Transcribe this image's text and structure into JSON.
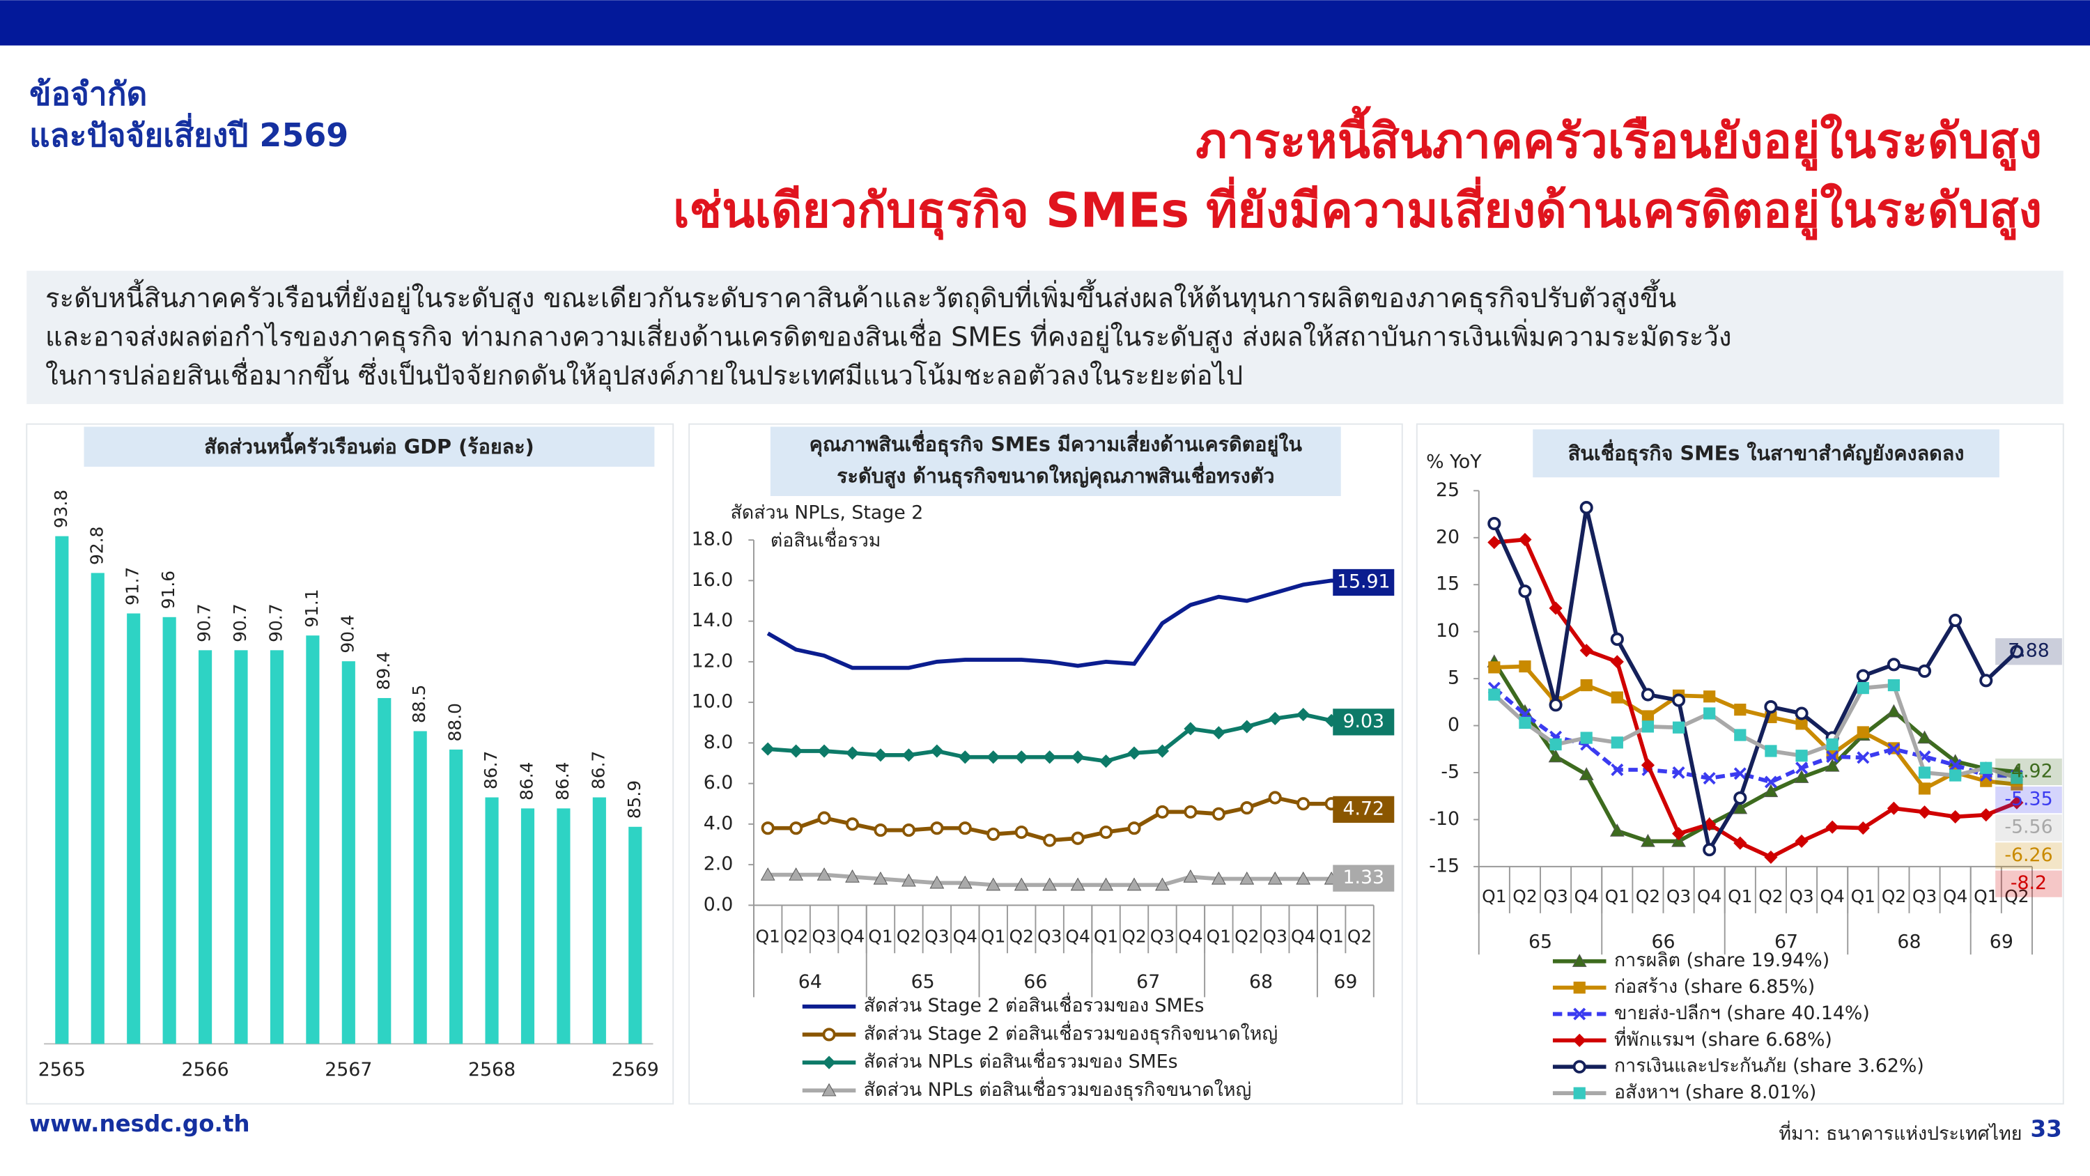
{
  "slide": {
    "heading": [
      "ข้อจำกัด",
      "และปัจจัยเสี่ยงปี 2569"
    ],
    "title": [
      "ภาระหนี้สินภาคครัวเรือนยังอยู่ในระดับสูง",
      "เช่นเดียวกับธุรกิจ SMEs ที่ยังมีความเสี่ยงด้านเครดิตอยู่ในระดับสูง"
    ],
    "summary": [
      "ระดับหนี้สินภาคครัวเรือนที่ยังอยู่ในระดับสูง ขณะเดียวกันระดับราคาสินค้าและวัตถุดิบที่เพิ่มขึ้นส่งผลให้ต้นทุนการผลิตของภาคธุรกิจปรับตัวสูงขึ้น",
      "และอาจส่งผลต่อกำไรของภาคธุรกิจ ท่ามกลางความเสี่ยงด้านเครดิตของสินเชื่อ SMEs ที่คงอยู่ในระดับสูง ส่งผลให้สถาบันการเงินเพิ่มความระมัดระวัง",
      "ในการปล่อยสินเชื่อมากขึ้น ซึ่งเป็นปัจจัยกดดันให้อุปสงค์ภายในประเทศมีแนวโน้มชะลอตัวลงในระยะต่อไป"
    ],
    "website": "www.nesdc.go.th",
    "source": "ที่มา: ธนาคารแห่งประเทศไทย",
    "page": 33
  },
  "chart_data": [
    {
      "type": "bar",
      "title": [
        "สัดส่วนหนี้ครัวเรือนต่อ GDP (ร้อยละ)"
      ],
      "categories": [
        "2565",
        null,
        null,
        null,
        "2566",
        null,
        null,
        null,
        "2567",
        null,
        null,
        null,
        "2568",
        null,
        null,
        null,
        "2569"
      ],
      "values": [
        93.8,
        92.8,
        91.7,
        91.6,
        90.7,
        90.7,
        90.7,
        91.1,
        90.4,
        89.4,
        88.5,
        88.0,
        86.7,
        86.4,
        86.4,
        86.7,
        85.9
      ],
      "value_labels": [
        "93.8",
        "92.8",
        "91.7",
        "91.6",
        "90.7",
        "90.7",
        "90.7",
        "91.1",
        "90.4",
        "89.4",
        "88.5",
        "88.0",
        "86.7",
        "86.4",
        "86.4",
        "86.7",
        "85.9"
      ],
      "color": "#2ed3c4",
      "ylim": [
        80,
        95
      ]
    },
    {
      "type": "line",
      "title": [
        "คุณภาพสินเชื่อธุรกิจ SMEs มีความเสี่ยงด้านเครดิตอยู่ใน",
        "ระดับสูง ด้านธุรกิจขนาดใหญ่คุณภาพสินเชื่อทรงตัว"
      ],
      "ylabel": [
        "สัดส่วน NPLs, Stage 2",
        "ต่อสินเชื่อรวม"
      ],
      "categories": [
        "Q1",
        "Q2",
        "Q3",
        "Q4",
        "Q1",
        "Q2",
        "Q3",
        "Q4",
        "Q1",
        "Q2",
        "Q3",
        "Q4",
        "Q1",
        "Q2",
        "Q3",
        "Q4",
        "Q1",
        "Q2",
        "Q3",
        "Q4",
        "Q1",
        "Q2"
      ],
      "groups": [
        "64",
        "65",
        "66",
        "67",
        "68",
        "69"
      ],
      "ylim": [
        0,
        18
      ],
      "yticks": [
        {
          "value": 0,
          "label": "0.0"
        },
        {
          "value": 2,
          "label": "2.0"
        },
        {
          "value": 4,
          "label": "4.0"
        },
        {
          "value": 6,
          "label": "6.0"
        },
        {
          "value": 8,
          "label": "8.0"
        },
        {
          "value": 10,
          "label": "10.0"
        },
        {
          "value": 12,
          "label": "12.0"
        },
        {
          "value": 14,
          "label": "14.0"
        },
        {
          "value": 16,
          "label": "16.0"
        },
        {
          "value": 18,
          "label": "18.0"
        }
      ],
      "legend": "bottom",
      "series": [
        {
          "name": "สัดส่วน Stage 2 ต่อสินเชื่อรวมของ SMEs",
          "color": "#0b1d8f",
          "marker": "none",
          "values": [
            13.4,
            12.6,
            12.3,
            11.7,
            11.7,
            11.7,
            12.0,
            12.1,
            12.1,
            12.1,
            12.0,
            11.8,
            12.0,
            11.9,
            13.9,
            14.8,
            15.2,
            15.0,
            15.4,
            15.8,
            16.0,
            15.91
          ]
        },
        {
          "name": "สัดส่วน Stage 2 ต่อสินเชื่อรวมของธุรกิจขนาดใหญ่",
          "color": "#8a5600",
          "marker": "circle",
          "values": [
            3.8,
            3.8,
            4.3,
            4.0,
            3.7,
            3.7,
            3.8,
            3.8,
            3.5,
            3.6,
            3.2,
            3.3,
            3.6,
            3.8,
            4.6,
            4.6,
            4.5,
            4.8,
            5.3,
            5.0,
            5.0,
            4.72
          ]
        },
        {
          "name": "สัดส่วน NPLs ต่อสินเชื่อรวมของ SMEs",
          "color": "#0d7a68",
          "marker": "diamond",
          "values": [
            7.7,
            7.6,
            7.6,
            7.5,
            7.4,
            7.4,
            7.6,
            7.3,
            7.3,
            7.3,
            7.3,
            7.3,
            7.1,
            7.5,
            7.6,
            8.7,
            8.5,
            8.8,
            9.2,
            9.4,
            9.1,
            9.03
          ]
        },
        {
          "name": "สัดส่วน NPLs ต่อสินเชื่อรวมของธุรกิจขนาดใหญ่",
          "color": "#aaaaaa",
          "marker": "triangle",
          "values": [
            1.5,
            1.5,
            1.5,
            1.4,
            1.3,
            1.2,
            1.1,
            1.1,
            1.0,
            1.0,
            1.0,
            1.0,
            1.0,
            1.0,
            1.0,
            1.4,
            1.3,
            1.3,
            1.3,
            1.3,
            1.3,
            1.33
          ]
        }
      ]
    },
    {
      "type": "line",
      "title": [
        "สินเชื่อธุรกิจ SMEs ในสาขาสำคัญยังคงลดลง"
      ],
      "ylabel": [
        "% YoY"
      ],
      "categories": [
        "Q1",
        "Q2",
        "Q3",
        "Q4",
        "Q1",
        "Q2",
        "Q3",
        "Q4",
        "Q1",
        "Q2",
        "Q3",
        "Q4",
        "Q1",
        "Q2",
        "Q3",
        "Q4",
        "Q1",
        "Q2"
      ],
      "groups": [
        "65",
        "66",
        "67",
        "68",
        "69"
      ],
      "ylim": [
        -15,
        25
      ],
      "yticks": [
        25,
        20,
        15,
        10,
        5,
        0,
        -5,
        -10,
        -15
      ],
      "legend": "bottom",
      "series": [
        {
          "name": "การผลิต (share 19.94%)",
          "color": "#3d6b1e",
          "marker": "triangle",
          "values": [
            6.8,
            1.5,
            -3.3,
            -5.2,
            -11.2,
            -12.3,
            -12.3,
            -10.5,
            -8.8,
            -7.0,
            -5.5,
            -4.3,
            -1.0,
            1.5,
            -1.3,
            -3.8,
            -4.6,
            -4.92
          ]
        },
        {
          "name": "ก่อสร้าง (share 6.85%)",
          "color": "#c98a00",
          "marker": "square",
          "values": [
            6.2,
            6.3,
            2.5,
            4.3,
            3.0,
            1.0,
            3.2,
            3.1,
            1.7,
            0.9,
            0.2,
            -3.0,
            -0.7,
            -2.4,
            -6.7,
            -5.0,
            -5.9,
            -6.26
          ]
        },
        {
          "name": "ขายส่ง-ปลีกฯ (share 40.14%)",
          "color": "#3b3bf0",
          "marker": "x",
          "dash": true,
          "values": [
            4.0,
            1.2,
            -1.2,
            -2.0,
            -4.7,
            -4.7,
            -5.0,
            -5.6,
            -5.1,
            -6.0,
            -4.5,
            -3.3,
            -3.4,
            -2.5,
            -3.3,
            -4.2,
            -5.3,
            -5.35
          ]
        },
        {
          "name": "ที่พักแรมฯ (share 6.68%)",
          "color": "#d00000",
          "marker": "diamond",
          "values": [
            19.5,
            19.8,
            12.5,
            8.0,
            6.8,
            -4.2,
            -11.5,
            -10.5,
            -12.5,
            -14.0,
            -12.3,
            -10.8,
            -10.9,
            -8.8,
            -9.2,
            -9.7,
            -9.5,
            -8.2
          ]
        },
        {
          "name": "การเงินและประกันภัย (share 3.62%)",
          "color": "#14205a",
          "marker": "circle",
          "values": [
            21.5,
            14.3,
            2.2,
            23.2,
            9.2,
            3.3,
            2.7,
            -13.2,
            -7.7,
            2.0,
            1.3,
            -1.3,
            5.3,
            6.5,
            5.8,
            11.2,
            4.8,
            7.88
          ]
        },
        {
          "name": "อสังหาฯ (share  8.01%)",
          "color": "#a8a8a8",
          "marker": "square",
          "marker_color": "#36c9c0",
          "values": [
            3.3,
            0.3,
            -2.0,
            -1.3,
            -1.8,
            -0.1,
            -0.2,
            1.3,
            -1.0,
            -2.7,
            -3.2,
            -2.0,
            4.0,
            4.3,
            -5.0,
            -5.3,
            -4.5,
            -5.56
          ]
        }
      ]
    }
  ]
}
